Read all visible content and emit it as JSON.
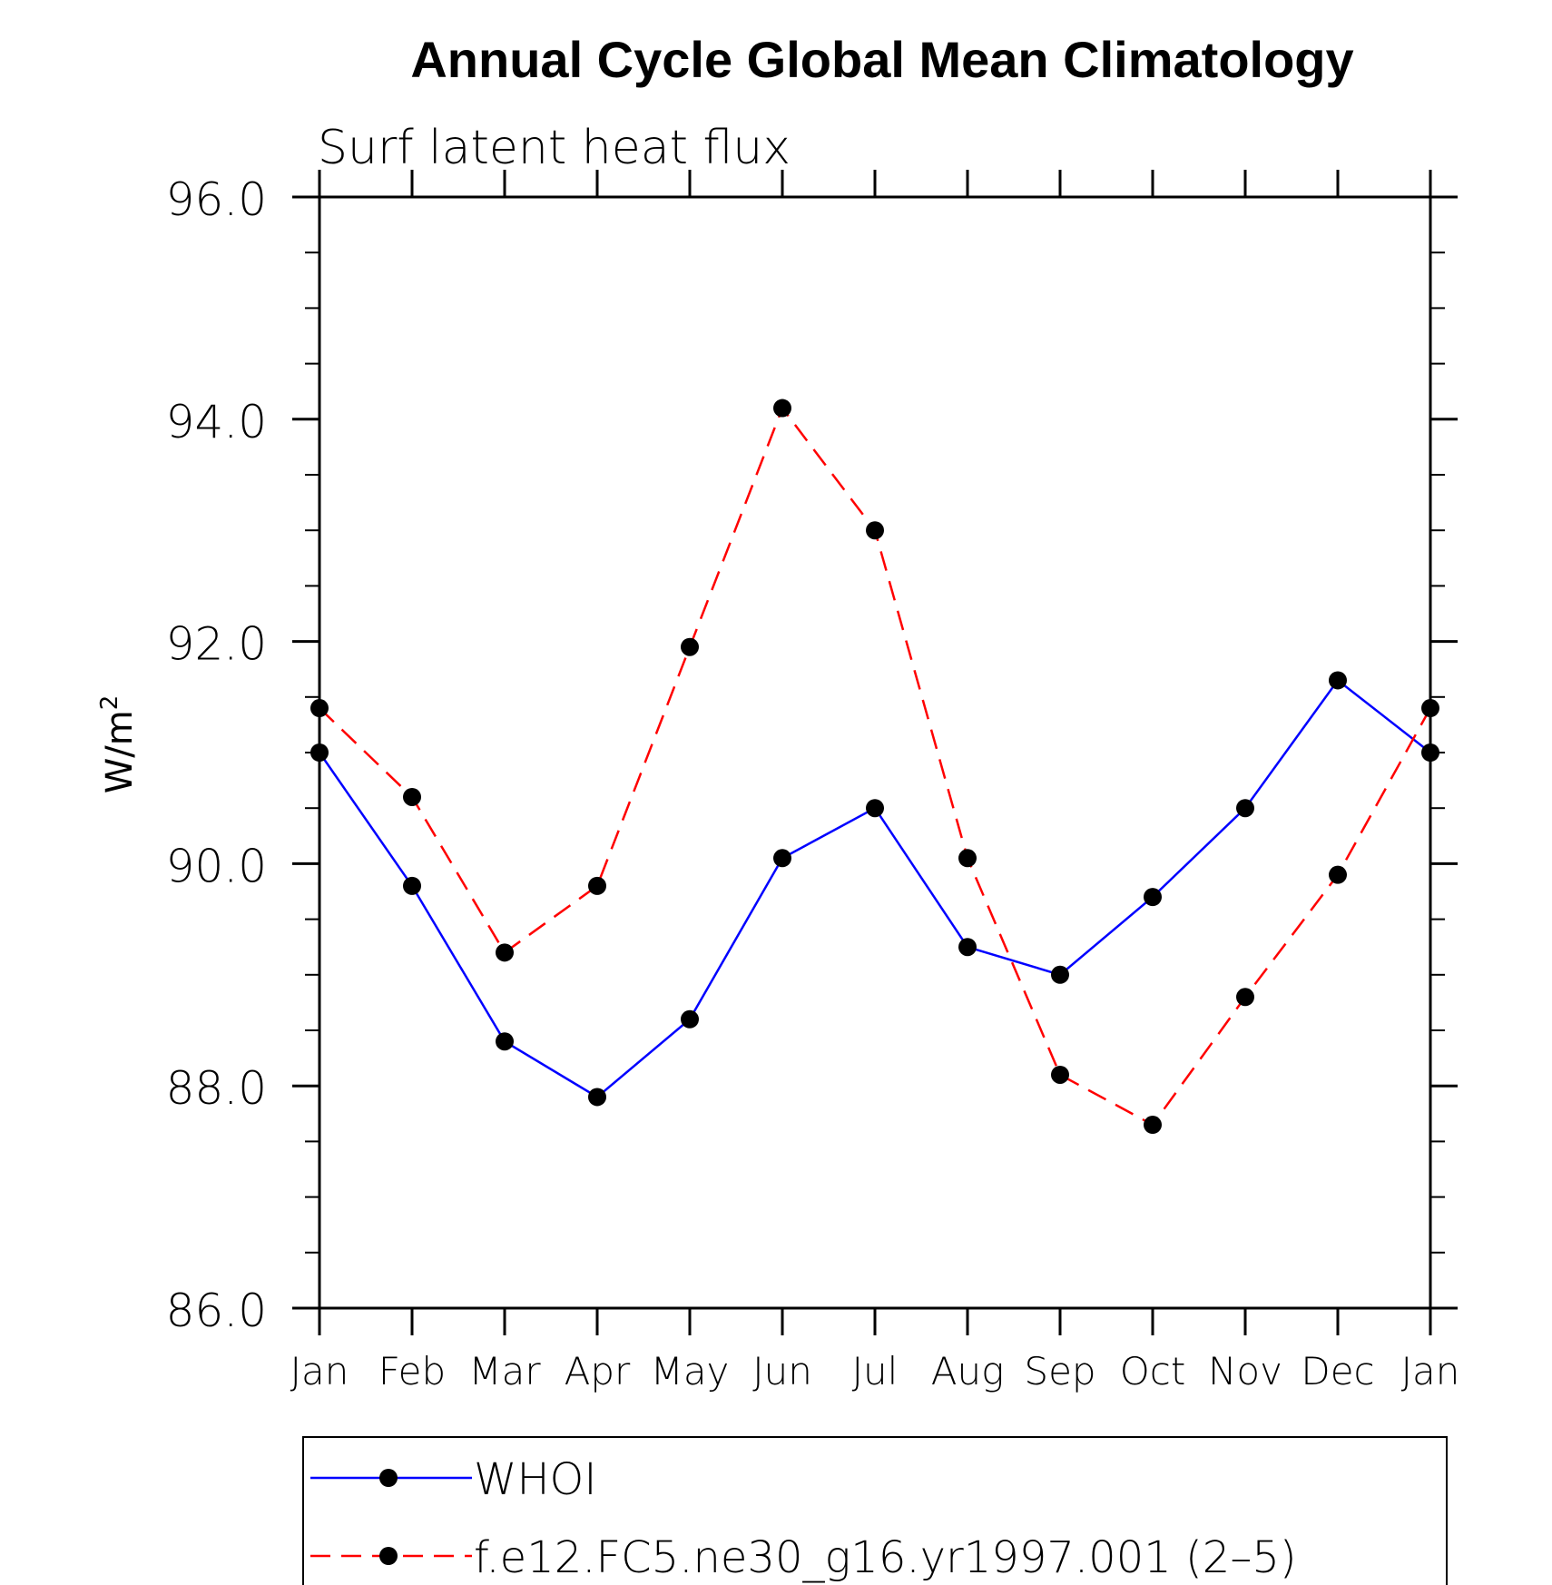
{
  "chart_data": {
    "type": "line",
    "title": "Annual Cycle Global Mean Climatology",
    "subtitle": "Surf latent heat flux",
    "ylabel": "W/m",
    "ylabel_superscript": "2",
    "xlabel": "",
    "categories": [
      "Jan",
      "Feb",
      "Mar",
      "Apr",
      "May",
      "Jun",
      "Jul",
      "Aug",
      "Sep",
      "Oct",
      "Nov",
      "Dec",
      "Jan"
    ],
    "ylim": [
      86.0,
      96.0
    ],
    "yticks": [
      "86.0",
      "88.0",
      "90.0",
      "92.0",
      "94.0",
      "96.0"
    ],
    "grid": false,
    "legend_position": "bottom",
    "series": [
      {
        "name": "WHOI",
        "color": "#0000ff",
        "dash": "solid",
        "values": [
          91.0,
          89.8,
          88.4,
          87.9,
          88.6,
          90.05,
          90.5,
          89.25,
          89.0,
          89.7,
          90.5,
          91.65,
          91.0
        ]
      },
      {
        "name": "f.e12.FC5.ne30_g16.yr1997.001 (2–5)",
        "color": "#ff0000",
        "dash": "dashed",
        "values": [
          91.4,
          90.6,
          89.2,
          89.8,
          91.95,
          94.1,
          93.0,
          90.05,
          88.1,
          87.65,
          88.8,
          89.9,
          91.4
        ]
      }
    ]
  }
}
